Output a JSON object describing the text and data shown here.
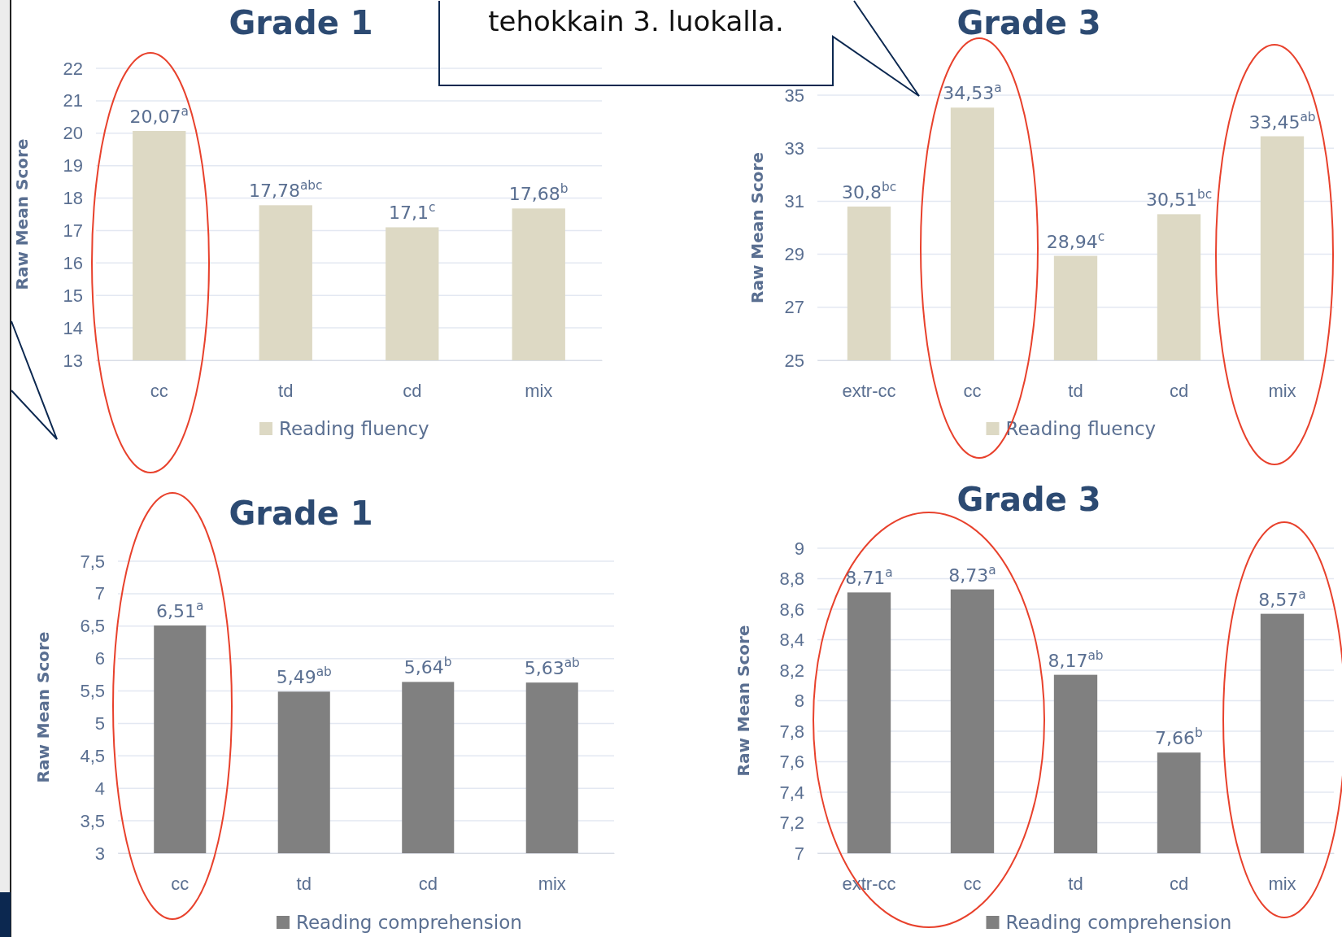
{
  "chart_data": [
    {
      "type": "bar",
      "title": "Grade 1",
      "ylabel": "Raw Mean Score",
      "categories": [
        "cc",
        "td",
        "cd",
        "mix"
      ],
      "series": [
        {
          "name": "Reading fluency",
          "color": "#ddd9c4",
          "values": [
            20.07,
            17.78,
            17.1,
            17.68
          ],
          "value_labels": [
            "20,07$^{a}$",
            "17,78$^{abc}$",
            "17,1$^{c}$",
            "17,68$^{b}$"
          ]
        }
      ],
      "ylim": [
        13,
        22
      ],
      "yticks": [
        13,
        14,
        15,
        16,
        17,
        18,
        19,
        20,
        21,
        22
      ],
      "grid": "y",
      "legend": "bottom"
    },
    {
      "type": "bar",
      "title": "Grade 3",
      "ylabel": "Raw Mean Score",
      "categories": [
        "extr-cc",
        "cc",
        "td",
        "cd",
        "mix"
      ],
      "series": [
        {
          "name": "Reading fluency",
          "color": "#ddd9c4",
          "values": [
            30.8,
            34.53,
            28.94,
            30.51,
            33.45
          ],
          "value_labels": [
            "30,8$^{bc}$",
            "34,53$^{a}$",
            "28,94$^{c}$",
            "30,51$^{bc}$",
            "33,45$^{ab}$"
          ]
        }
      ],
      "ylim": [
        25,
        35
      ],
      "yticks": [
        25,
        27,
        29,
        31,
        33,
        35
      ],
      "grid": "y",
      "legend": "bottom",
      "annotations": [
        "tehokkain 3. luokalla."
      ]
    },
    {
      "type": "bar",
      "title": "Grade 1",
      "ylabel": "Raw Mean Score",
      "categories": [
        "cc",
        "td",
        "cd",
        "mix"
      ],
      "series": [
        {
          "name": "Reading comprehension",
          "color": "#808080",
          "values": [
            6.51,
            5.49,
            5.64,
            5.63
          ],
          "value_labels": [
            "6,51$^{a}$",
            "5,49$^{ab}$",
            "5,64$^{b}$",
            "5,63$^{ab}$"
          ]
        }
      ],
      "ylim": [
        3,
        7.5
      ],
      "yticks": [
        3,
        {
          "value": 3.5,
          "label": "3,5"
        },
        4,
        {
          "value": 4.5,
          "label": "4,5"
        },
        5,
        {
          "value": 5.5,
          "label": "5,5"
        },
        6,
        {
          "value": 6.5,
          "label": "6,5"
        },
        7,
        {
          "value": 7.5,
          "label": "7,5"
        }
      ],
      "grid": "y",
      "legend": "bottom"
    },
    {
      "type": "bar",
      "title": "Grade 3",
      "ylabel": "Raw Mean Score",
      "categories": [
        "extr-cc",
        "cc",
        "td",
        "cd",
        "mix"
      ],
      "series": [
        {
          "name": "Reading comprehension",
          "color": "#808080",
          "values": [
            8.71,
            8.73,
            8.17,
            7.66,
            8.57
          ],
          "value_labels": [
            "8,71$^{a}$",
            "8,73$^{a}$",
            "8,17$^{ab}$",
            "7,66$^{b}$",
            "8,57$^{a}$"
          ]
        }
      ],
      "ylim": [
        7,
        9
      ],
      "yticks": [
        7,
        {
          "value": 7.2,
          "label": "7,2"
        },
        {
          "value": 7.4,
          "label": "7,4"
        },
        {
          "value": 7.6,
          "label": "7,6"
        },
        {
          "value": 7.8,
          "label": "7,8"
        },
        8,
        {
          "value": 8.2,
          "label": "8,2"
        },
        {
          "value": 8.4,
          "label": "8,4"
        },
        {
          "value": 8.6,
          "label": "8,6"
        },
        {
          "value": 8.8,
          "label": "8,8"
        },
        9
      ],
      "grid": "y",
      "legend": "bottom"
    }
  ]
}
